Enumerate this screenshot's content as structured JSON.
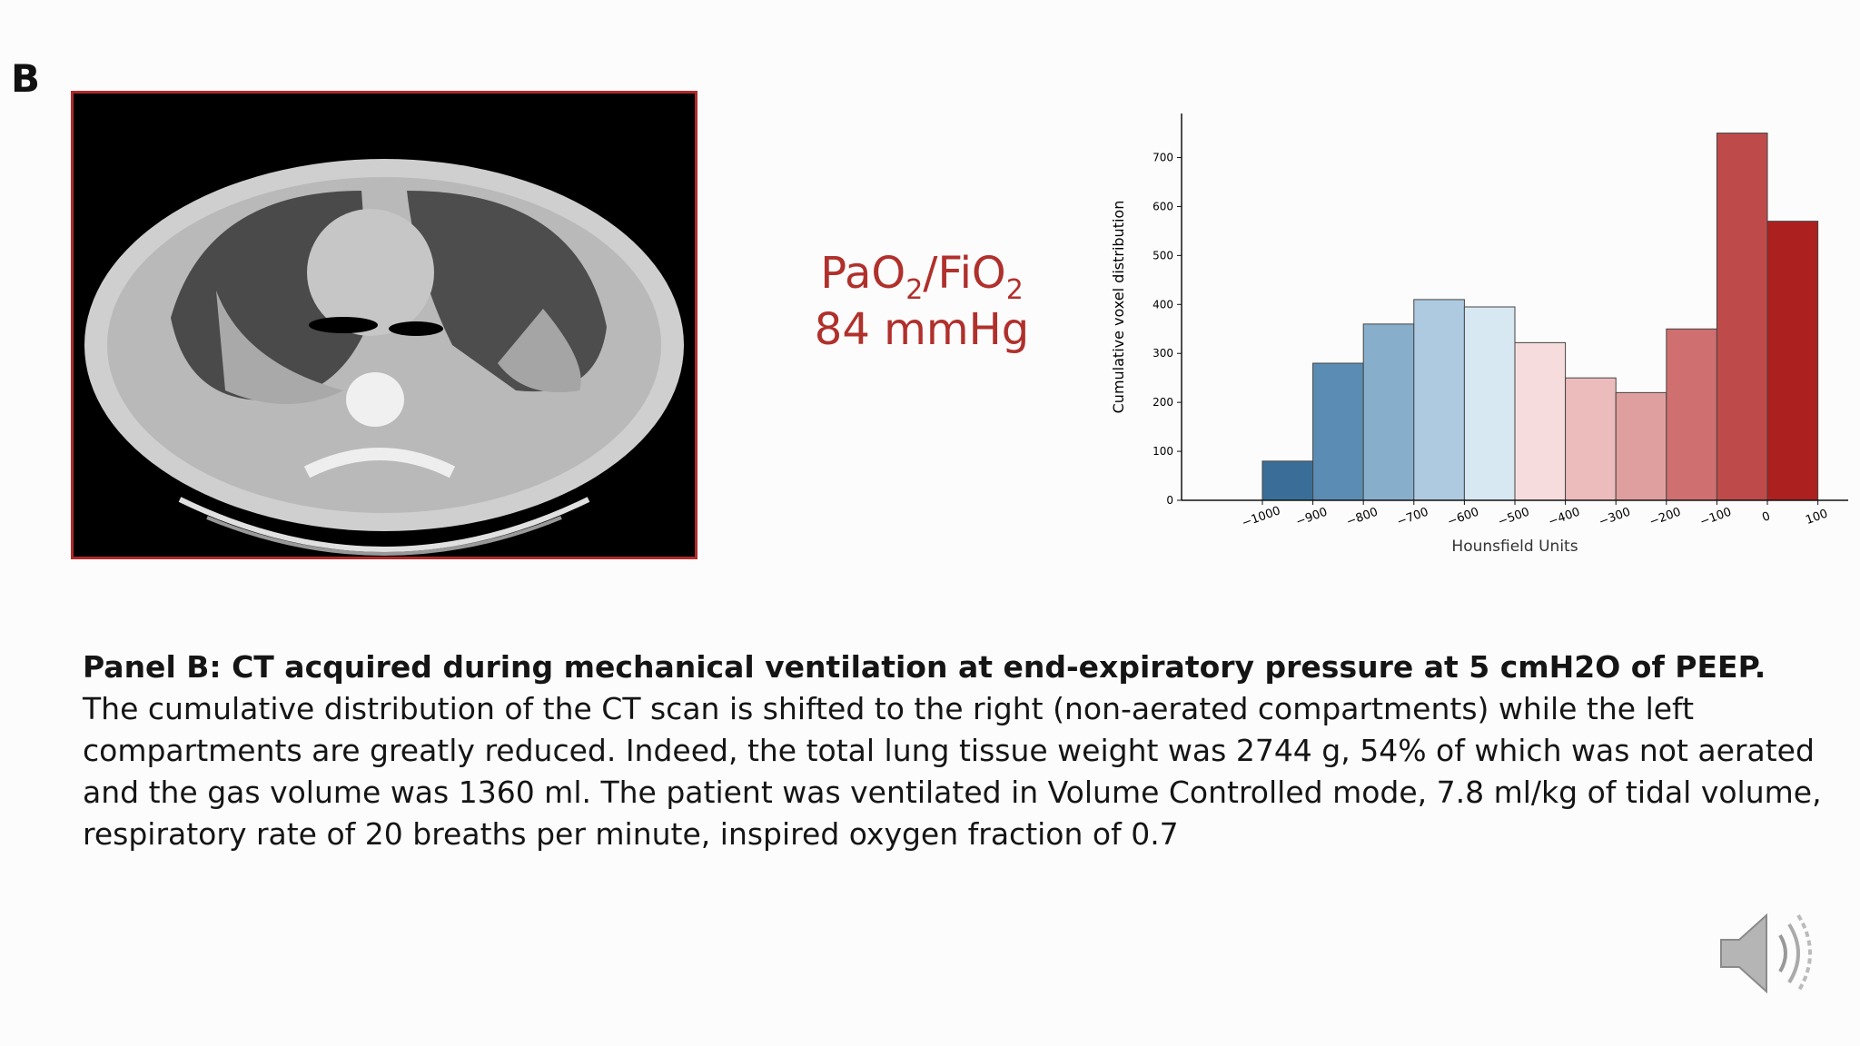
{
  "panel_label": "B",
  "ratio_label": [
    "PaO",
    "2",
    "/FiO",
    "2"
  ],
  "ratio_value": "84 mmHg",
  "chart_data": {
    "type": "histogram",
    "bins": [
      -1000,
      -900,
      -800,
      -700,
      -600,
      -500,
      -400,
      -300,
      -200,
      -100,
      0,
      100
    ],
    "values": [
      80,
      280,
      360,
      410,
      395,
      322,
      250,
      220,
      350,
      750,
      570
    ],
    "colors": [
      "#3a6e98",
      "#5b8db4",
      "#87afcc",
      "#aecae0",
      "#d7e8f2",
      "#f6dcdc",
      "#ecbcbc",
      "#e09f9f",
      "#cf6f6f",
      "#bf4a4a",
      "#ad2020"
    ],
    "xlabel": "Hounsfield Units",
    "ylabel": "Cumulative voxel distribution",
    "xlim": [
      -1160,
      160
    ],
    "ylim": [
      0,
      790
    ],
    "xticks": [
      {
        "value": -1000,
        "label": "−1000"
      },
      {
        "value": -900,
        "label": "−900"
      },
      {
        "value": -800,
        "label": "−800"
      },
      {
        "value": -700,
        "label": "−700"
      },
      {
        "value": -600,
        "label": "−600"
      },
      {
        "value": -500,
        "label": "−500"
      },
      {
        "value": -400,
        "label": "−400"
      },
      {
        "value": -300,
        "label": "−300"
      },
      {
        "value": -200,
        "label": "−200"
      },
      {
        "value": -100,
        "label": "−100"
      },
      0,
      100
    ],
    "yticks": [
      0,
      100,
      200,
      300,
      400,
      500,
      600,
      700
    ]
  },
  "caption": {
    "bold": "Panel B: CT acquired during mechanical ventilation at end-expiratory pressure at 5 cmH2O of PEEP.",
    "text": "The cumulative distribution of the CT scan is shifted to the right (non-aerated compartments) while the left compartments are greatly reduced. Indeed, the total lung tissue weight was 2744 g, 54% of which was not aerated and the gas volume was 1360 ml. The patient was ventilated in Volume Controlled mode, 7.8 ml/kg of tidal volume, respiratory rate of 20 breaths per minute, inspired oxygen fraction of 0.7"
  }
}
